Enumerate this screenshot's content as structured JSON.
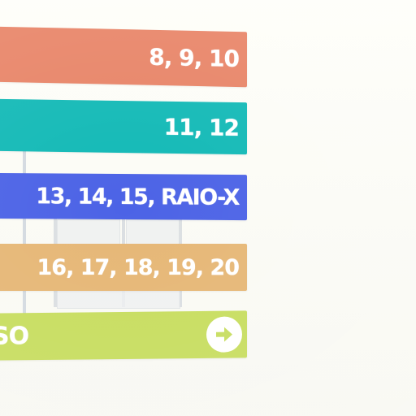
{
  "signs": [
    {
      "label": "8, 9, 10",
      "color": "#e88467"
    },
    {
      "label": "11, 12",
      "color": "#12b9b6"
    },
    {
      "label": "13, 14, 15, RAIO-X",
      "color": "#4c63e6"
    },
    {
      "label": "16, 17, 18, 19, 20",
      "color": "#e6b776"
    },
    {
      "label": "SO",
      "color": "#c7dd5e",
      "icon": "arrow-right-icon"
    }
  ],
  "background_color": "#fbfbf6"
}
